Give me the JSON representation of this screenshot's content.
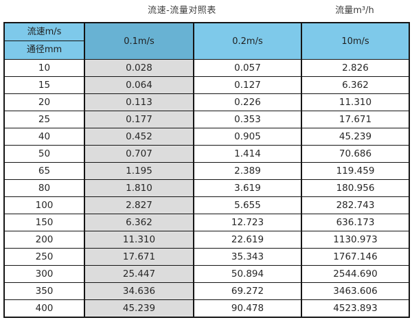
{
  "titles": {
    "left": "流速-流量对照表",
    "right": "流量m³/h"
  },
  "table": {
    "header": {
      "corner_top": "流速m/s",
      "corner_bottom": "通径mm",
      "col_v1": "0.1m/s",
      "col_v2": "0.2m/s",
      "col_v3": "10m/s"
    },
    "rows": [
      {
        "dn": "10",
        "v01": "0.028",
        "v02": "0.057",
        "v10": "2.826"
      },
      {
        "dn": "15",
        "v01": "0.064",
        "v02": "0.127",
        "v10": "6.362"
      },
      {
        "dn": "20",
        "v01": "0.113",
        "v02": "0.226",
        "v10": "11.310"
      },
      {
        "dn": "25",
        "v01": "0.177",
        "v02": "0.353",
        "v10": "17.671"
      },
      {
        "dn": "40",
        "v01": "0.452",
        "v02": "0.905",
        "v10": "45.239"
      },
      {
        "dn": "50",
        "v01": "0.707",
        "v02": "1.414",
        "v10": "70.686"
      },
      {
        "dn": "65",
        "v01": "1.195",
        "v02": "2.389",
        "v10": "119.459"
      },
      {
        "dn": "80",
        "v01": "1.810",
        "v02": "3.619",
        "v10": "180.956"
      },
      {
        "dn": "100",
        "v01": "2.827",
        "v02": "5.655",
        "v10": "282.743"
      },
      {
        "dn": "150",
        "v01": "6.362",
        "v02": "12.723",
        "v10": "636.173"
      },
      {
        "dn": "200",
        "v01": "11.310",
        "v02": "22.619",
        "v10": "1130.973"
      },
      {
        "dn": "250",
        "v01": "17.671",
        "v02": "35.343",
        "v10": "1767.146"
      },
      {
        "dn": "300",
        "v01": "25.447",
        "v02": "50.894",
        "v10": "2544.690"
      },
      {
        "dn": "350",
        "v01": "34.636",
        "v02": "69.272",
        "v10": "3463.606"
      },
      {
        "dn": "400",
        "v01": "45.239",
        "v02": "90.478",
        "v10": "4523.893"
      }
    ]
  },
  "colors": {
    "header_blue": "#7ec9ea",
    "header_blue_dark": "#68b2d3",
    "column_gray": "#dcdcdc",
    "grid_border": "#141414",
    "text": "#262626",
    "title_text": "#3c3c3c"
  },
  "chart_data": {
    "type": "table",
    "title": "流速-流量对照表",
    "value_unit_label": "流量m³/h",
    "row_dimension_label": "通径mm",
    "col_dimension_label": "流速m/s",
    "columns": [
      "0.1m/s",
      "0.2m/s",
      "10m/s"
    ],
    "diameters_mm": [
      10,
      15,
      20,
      25,
      40,
      50,
      65,
      80,
      100,
      150,
      200,
      250,
      300,
      350,
      400
    ],
    "series": [
      {
        "name": "0.1m/s",
        "values": [
          0.028,
          0.064,
          0.113,
          0.177,
          0.452,
          0.707,
          1.195,
          1.81,
          2.827,
          6.362,
          11.31,
          17.671,
          25.447,
          34.636,
          45.239
        ]
      },
      {
        "name": "0.2m/s",
        "values": [
          0.057,
          0.127,
          0.226,
          0.353,
          0.905,
          1.414,
          2.389,
          3.619,
          5.655,
          12.723,
          22.619,
          35.343,
          50.894,
          69.272,
          90.478
        ]
      },
      {
        "name": "10m/s",
        "values": [
          2.826,
          6.362,
          11.31,
          17.671,
          45.239,
          70.686,
          119.459,
          180.956,
          282.743,
          636.173,
          1130.973,
          1767.146,
          2544.69,
          3463.606,
          4523.893
        ]
      }
    ]
  }
}
